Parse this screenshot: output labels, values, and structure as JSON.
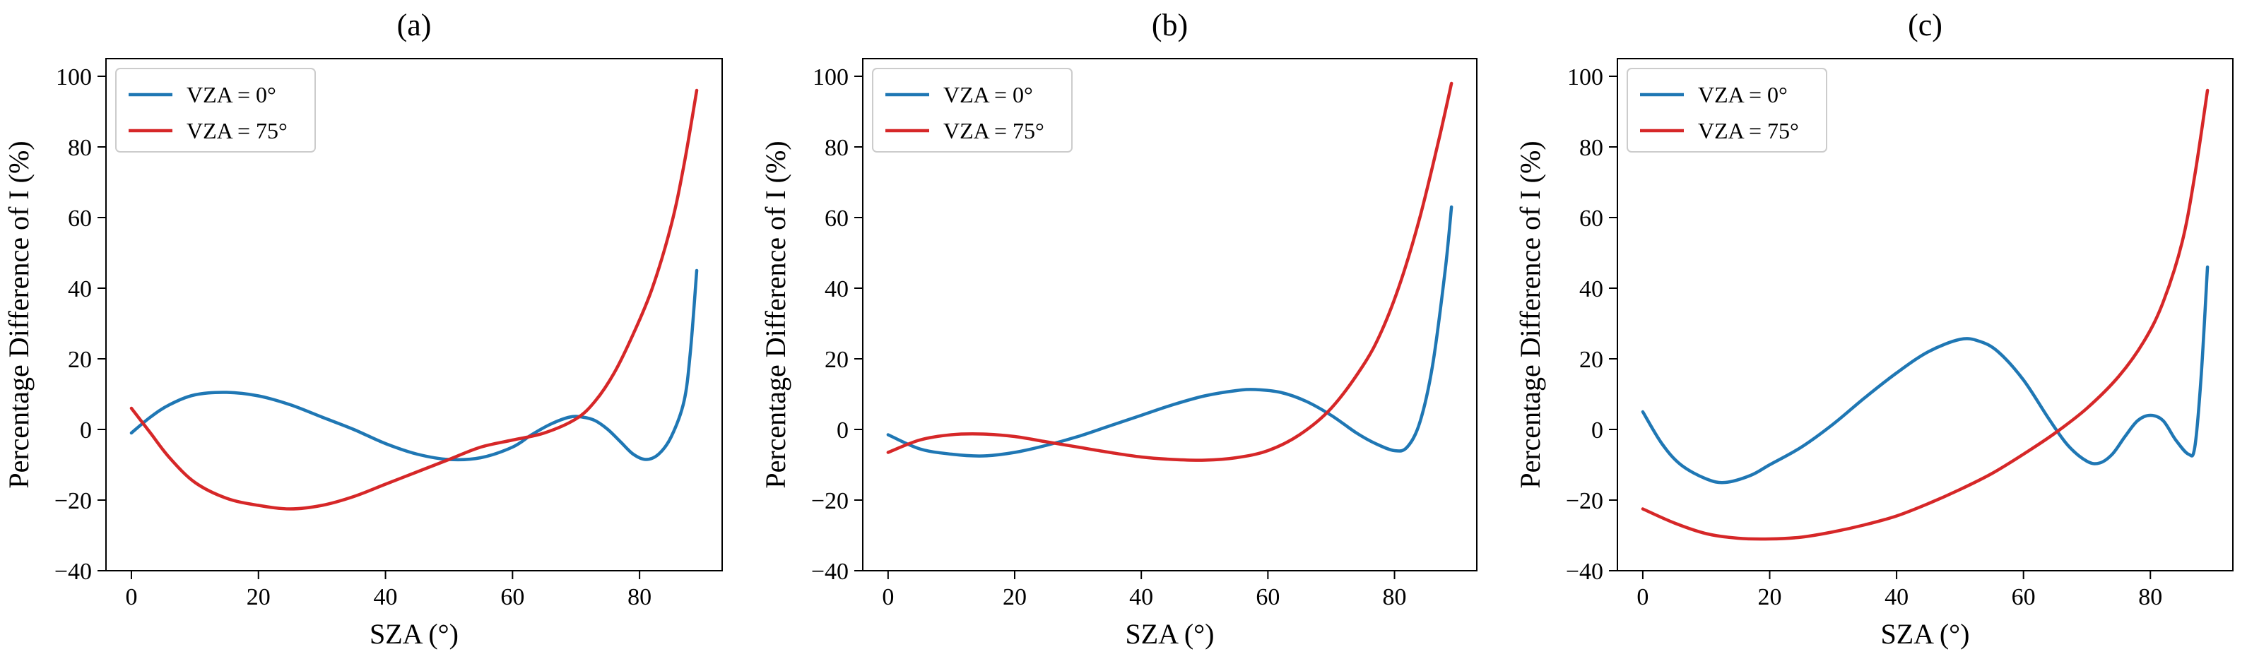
{
  "chart_data": [
    {
      "type": "line",
      "title": "(a)",
      "xlabel": "SZA (°)",
      "ylabel": "Percentage Difference of I (%)",
      "xlim": [
        -4,
        93
      ],
      "ylim": [
        -40,
        105
      ],
      "xticks": [
        0,
        20,
        40,
        60,
        80
      ],
      "yticks": [
        -40,
        -20,
        0,
        20,
        40,
        60,
        80,
        100
      ],
      "legend_position": "top-left",
      "grid": false,
      "series": [
        {
          "name": "VZA = 0°",
          "color": "#1f77b4",
          "x": [
            0,
            3,
            6,
            10,
            15,
            20,
            25,
            30,
            35,
            40,
            45,
            50,
            55,
            60,
            63,
            66,
            69,
            71,
            73,
            75,
            77,
            79,
            81,
            83,
            85,
            87,
            88,
            89
          ],
          "y": [
            -1,
            3.5,
            7,
            9.8,
            10.5,
            9.5,
            7,
            3.5,
            0,
            -4,
            -7,
            -8.5,
            -8,
            -5,
            -1.5,
            1.5,
            3.5,
            3.5,
            2.5,
            0,
            -3.5,
            -7,
            -8.5,
            -7,
            -2,
            8,
            22,
            45
          ]
        },
        {
          "name": "VZA = 75°",
          "color": "#d62728",
          "x": [
            0,
            3,
            6,
            10,
            15,
            20,
            25,
            30,
            35,
            40,
            45,
            50,
            55,
            60,
            65,
            70,
            73,
            76,
            79,
            82,
            85,
            87,
            89
          ],
          "y": [
            6,
            -1,
            -8,
            -15,
            -19.5,
            -21.5,
            -22.5,
            -21.5,
            -19,
            -15.5,
            -12,
            -8.5,
            -5,
            -3,
            -1,
            3,
            8,
            16,
            27,
            40,
            58,
            75,
            96
          ]
        }
      ]
    },
    {
      "type": "line",
      "title": "(b)",
      "xlabel": "SZA (°)",
      "ylabel": "Percentage Difference of I (%)",
      "xlim": [
        -4,
        93
      ],
      "ylim": [
        -40,
        105
      ],
      "xticks": [
        0,
        20,
        40,
        60,
        80
      ],
      "yticks": [
        -40,
        -20,
        0,
        20,
        40,
        60,
        80,
        100
      ],
      "legend_position": "top-left",
      "grid": false,
      "series": [
        {
          "name": "VZA = 0°",
          "color": "#1f77b4",
          "x": [
            0,
            5,
            10,
            15,
            20,
            25,
            30,
            35,
            40,
            45,
            50,
            55,
            58,
            62,
            66,
            70,
            74,
            77,
            80,
            82,
            84,
            86,
            88,
            89
          ],
          "y": [
            -1.5,
            -5.5,
            -7,
            -7.5,
            -6.5,
            -4.5,
            -2,
            1,
            4,
            7,
            9.5,
            11,
            11.3,
            10.5,
            8,
            4,
            -1,
            -4,
            -6,
            -5,
            2,
            18,
            45,
            63
          ]
        },
        {
          "name": "VZA = 75°",
          "color": "#d62728",
          "x": [
            0,
            5,
            10,
            15,
            20,
            25,
            30,
            35,
            40,
            45,
            50,
            55,
            60,
            65,
            70,
            75,
            78,
            81,
            84,
            87,
            89
          ],
          "y": [
            -6.5,
            -3,
            -1.5,
            -1.3,
            -2,
            -3.5,
            -5,
            -6.5,
            -7.8,
            -8.5,
            -8.7,
            -8,
            -6,
            -1.5,
            6,
            18,
            28,
            42,
            60,
            82,
            98
          ]
        }
      ]
    },
    {
      "type": "line",
      "title": "(c)",
      "xlabel": "SZA (°)",
      "ylabel": "Percentage Difference of I (%)",
      "xlim": [
        -4,
        93
      ],
      "ylim": [
        -40,
        105
      ],
      "xticks": [
        0,
        20,
        40,
        60,
        80
      ],
      "yticks": [
        -40,
        -20,
        0,
        20,
        40,
        60,
        80,
        100
      ],
      "legend_position": "top-left",
      "grid": false,
      "series": [
        {
          "name": "VZA = 0°",
          "color": "#1f77b4",
          "x": [
            0,
            3,
            6,
            10,
            13,
            17,
            20,
            25,
            30,
            35,
            40,
            45,
            50,
            53,
            56,
            60,
            64,
            67,
            70,
            72,
            74,
            76,
            78,
            80,
            82,
            84,
            86,
            87,
            88,
            89
          ],
          "y": [
            5,
            -4,
            -10,
            -14,
            -15,
            -13,
            -10,
            -5,
            1.5,
            9,
            16,
            22,
            25.5,
            25,
            22,
            14,
            3,
            -4.5,
            -9,
            -9.5,
            -7,
            -2,
            2.5,
            4,
            2.5,
            -3,
            -7,
            -5,
            15,
            46
          ]
        },
        {
          "name": "VZA = 75°",
          "color": "#d62728",
          "x": [
            0,
            5,
            10,
            15,
            20,
            25,
            30,
            35,
            40,
            45,
            50,
            55,
            60,
            65,
            70,
            75,
            79,
            82,
            85,
            87,
            89
          ],
          "y": [
            -22.5,
            -26.5,
            -29.5,
            -30.8,
            -31,
            -30.5,
            -29,
            -27,
            -24.5,
            -21,
            -17,
            -12.5,
            -7,
            -1,
            6,
            15,
            25,
            36,
            53,
            72,
            96
          ]
        }
      ]
    }
  ]
}
